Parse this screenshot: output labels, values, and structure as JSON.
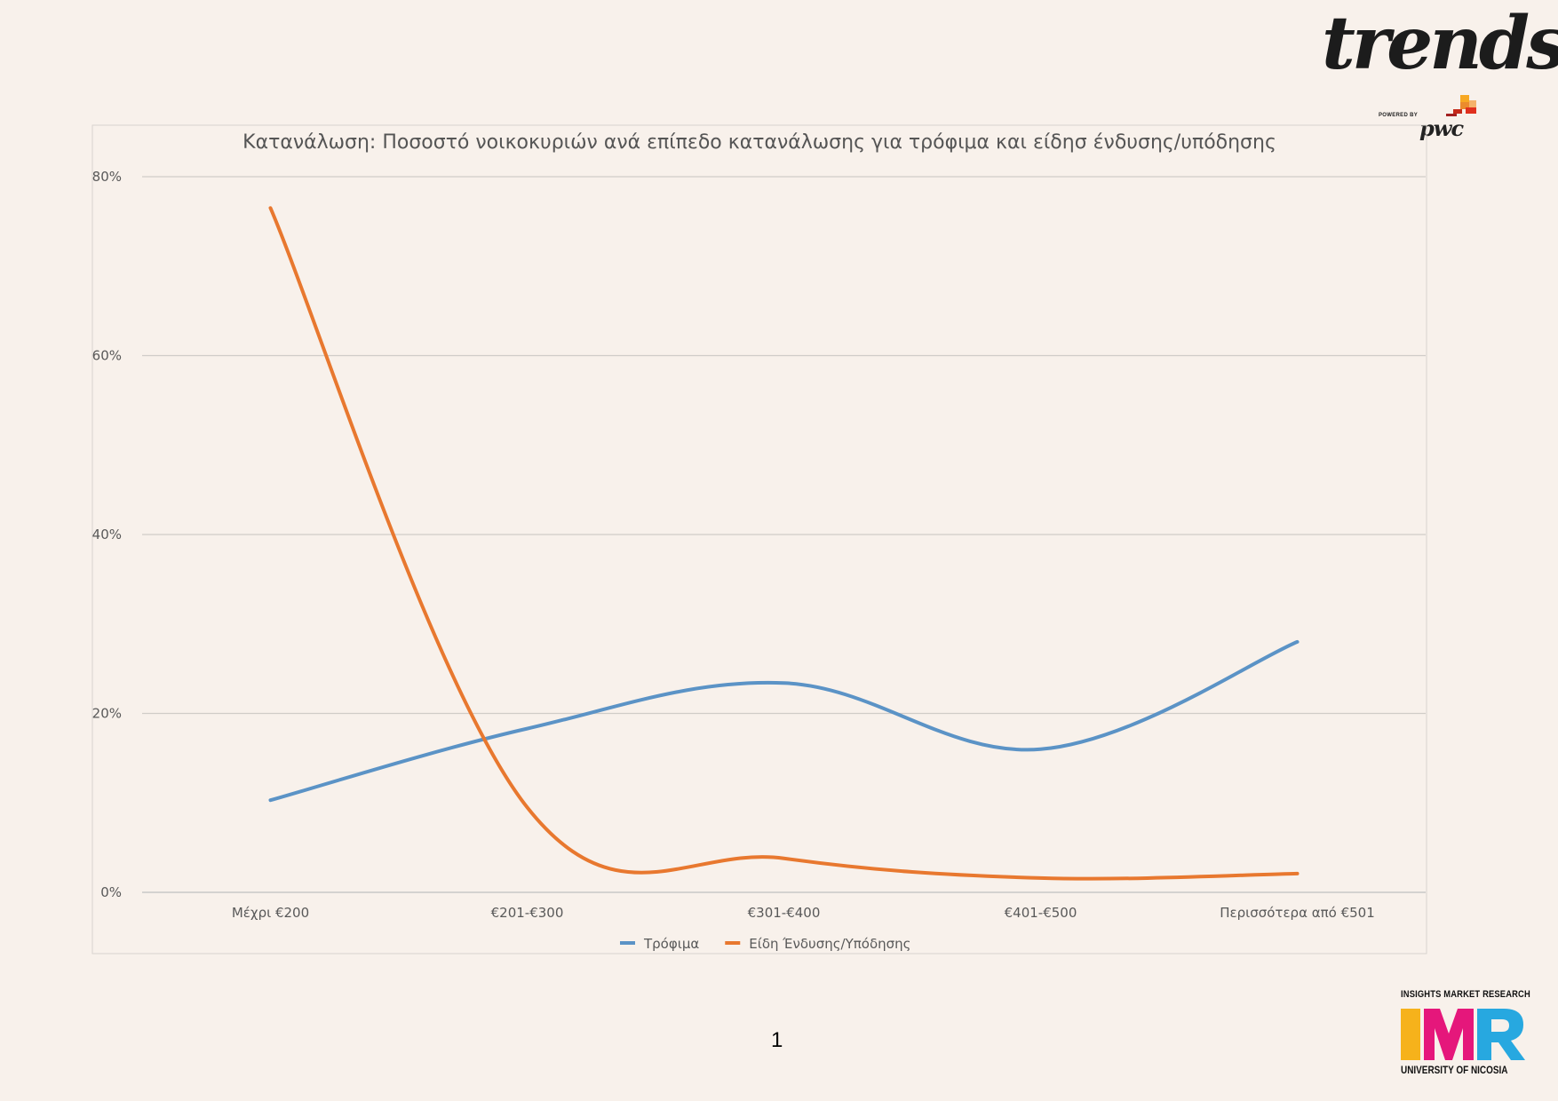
{
  "header": {
    "logo_text": "trends",
    "powered_by": "POWERED BY",
    "sponsor": "pwc"
  },
  "chart_data": {
    "type": "line",
    "title": "Κατανάλωση: Ποσοστό νοικοκυριών ανά επίπεδο κατανάλωσης για τρόφιμα και είδησ ένδυσης/υπόδησης",
    "xlabel": "",
    "ylabel": "",
    "categories": [
      "Μέχρι €200",
      "€201-€300",
      "€301-€400",
      "€401-€500",
      "Περισσότερα από €501"
    ],
    "series": [
      {
        "name": "Τρόφιμα",
        "values": [
          10.3,
          18.3,
          23.4,
          16.0,
          28.0
        ],
        "color": "#5b93c6"
      },
      {
        "name": "Είδη Ένδυσης/Υπόδησης",
        "values": [
          76.5,
          9.5,
          3.8,
          1.6,
          2.1
        ],
        "color": "#e8782f"
      }
    ],
    "ylim": [
      0,
      80
    ],
    "yticks": [
      "0%",
      "20%",
      "40%",
      "60%",
      "80%"
    ],
    "grid": true,
    "smooth": true,
    "legend": "bottom"
  },
  "footer": {
    "page_number": "1",
    "imr_top": "INSIGHTS MARKET RESEARCH",
    "imr_bottom": "UNIVERSITY OF NICOSIA",
    "imr_colors": [
      "#f6b21b",
      "#e5177b",
      "#27a8e0"
    ]
  }
}
